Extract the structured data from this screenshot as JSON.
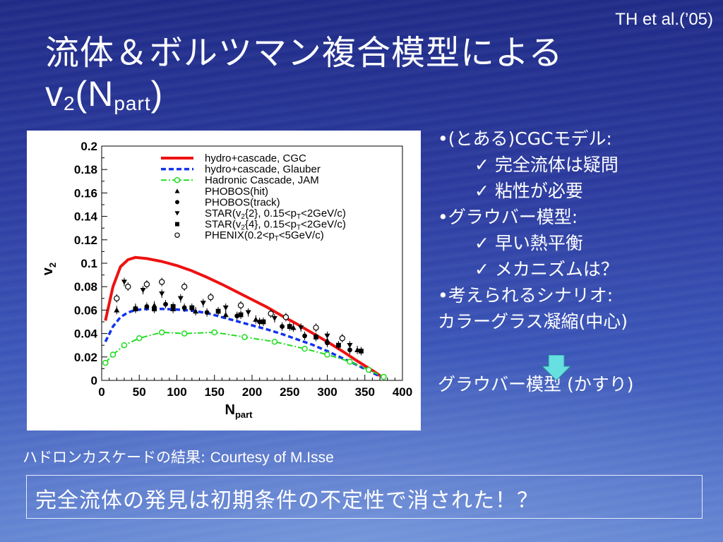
{
  "header": {
    "citation": "TH et al.(’05)",
    "title_line1": "流体＆ボルツマン複合模型による",
    "title_v": "v",
    "title_v_sub": "2",
    "title_open": "(N",
    "title_n_sub": "part",
    "title_close": ")"
  },
  "notes": {
    "items": [
      "•(とある)CGCモデル:",
      "✓ 完全流体は疑問",
      "✓ 粘性が必要",
      "•グラウバー模型:",
      "✓ 早い熱平衡",
      "✓ メカニズムは？",
      "•考えられるシナリオ:",
      "カラーグラス凝縮(中心)",
      "グラウバー模型 (かすり)"
    ]
  },
  "caption": {
    "jp": "ハドロンカスケードの結果: ",
    "en": "Courtesy of M.Isse"
  },
  "conclusion": "完全流体の発見は初期条件の不定性で消された！？",
  "colors": {
    "cgc": "#ee1111",
    "glauber": "#1133ee",
    "jam": "#22dd22",
    "arrow": "#66e0e0"
  },
  "chart_data": {
    "type": "line",
    "xlabel": "N",
    "xlabel_sub": "part",
    "ylabel": "v",
    "ylabel_sub": "2",
    "xlim": [
      0,
      400
    ],
    "ylim": [
      0,
      0.2
    ],
    "xticks": [
      0,
      50,
      100,
      150,
      200,
      250,
      300,
      350,
      400
    ],
    "yticks": [
      0,
      0.02,
      0.04,
      0.06,
      0.08,
      0.1,
      0.12,
      0.14,
      0.16,
      0.18,
      0.2
    ],
    "ytick_labels": [
      "0",
      "0.02",
      "0.04",
      "0.06",
      "0.08",
      "0.1",
      "0.12",
      "0.14",
      "0.16",
      "0.18",
      "0.2"
    ],
    "series": [
      {
        "name": "hydro+cascade, CGC",
        "style": "solid",
        "color": "#ee1111",
        "x": [
          5,
          15,
          25,
          35,
          45,
          60,
          80,
          100,
          120,
          140,
          160,
          180,
          200,
          220,
          240,
          260,
          280,
          300,
          320,
          340,
          360,
          375
        ],
        "y": [
          0.051,
          0.08,
          0.097,
          0.103,
          0.105,
          0.104,
          0.1015,
          0.098,
          0.0935,
          0.088,
          0.082,
          0.0755,
          0.069,
          0.0625,
          0.055,
          0.048,
          0.0405,
          0.033,
          0.025,
          0.0165,
          0.0085,
          0.002
        ]
      },
      {
        "name": "hydro+cascade, Glauber",
        "style": "dashed",
        "color": "#1133ee",
        "x": [
          5,
          15,
          25,
          35,
          45,
          60,
          80,
          100,
          120,
          140,
          160,
          180,
          200,
          220,
          240,
          260,
          280,
          300,
          320,
          340,
          360,
          375
        ],
        "y": [
          0.033,
          0.046,
          0.054,
          0.058,
          0.06,
          0.061,
          0.061,
          0.0605,
          0.0595,
          0.0575,
          0.054,
          0.0505,
          0.047,
          0.0435,
          0.0395,
          0.035,
          0.0305,
          0.025,
          0.019,
          0.013,
          0.0065,
          0.002
        ]
      },
      {
        "name": "Hadronic Cascade, JAM",
        "style": "dashdot-circle",
        "color": "#22dd22",
        "x": [
          5,
          15,
          30,
          50,
          80,
          110,
          150,
          190,
          230,
          270,
          300,
          330,
          355,
          375
        ],
        "y": [
          0.015,
          0.022,
          0.03,
          0.036,
          0.041,
          0.04,
          0.041,
          0.037,
          0.033,
          0.027,
          0.022,
          0.016,
          0.009,
          0.003
        ]
      },
      {
        "name": "PHOBOS(hit)",
        "marker": "triangle-up",
        "x": [
          20,
          45,
          70,
          95,
          125,
          165,
          205,
          255,
          300,
          340
        ],
        "y": [
          0.06,
          0.062,
          0.064,
          0.061,
          0.059,
          0.056,
          0.052,
          0.045,
          0.034,
          0.026
        ]
      },
      {
        "name": "PHOBOS(track)",
        "marker": "circle-filled",
        "x": [
          60,
          85,
          110,
          140,
          180,
          210,
          240,
          270,
          300,
          330
        ],
        "y": [
          0.063,
          0.065,
          0.062,
          0.058,
          0.055,
          0.05,
          0.046,
          0.038,
          0.032,
          0.026
        ]
      },
      {
        "name": "STAR(v2{2}, 0.15<pT<2GeV/c)",
        "marker": "triangle-down",
        "x": [
          30,
          55,
          80,
          105,
          135,
          165,
          195,
          230,
          265,
          300,
          330
        ],
        "y": [
          0.084,
          0.077,
          0.074,
          0.07,
          0.066,
          0.062,
          0.058,
          0.053,
          0.045,
          0.038,
          0.03
        ]
      },
      {
        "name": "STAR(v2{4}, 0.15<pT<2GeV/c)",
        "marker": "square",
        "x": [
          45,
          70,
          95,
          120,
          155,
          185,
          215,
          250,
          285,
          315,
          345
        ],
        "y": [
          0.061,
          0.061,
          0.063,
          0.062,
          0.059,
          0.056,
          0.05,
          0.046,
          0.037,
          0.03,
          0.025
        ]
      },
      {
        "name": "PHENIX(0.2<pT<5GeV/c)",
        "marker": "circle-open",
        "x": [
          20,
          35,
          60,
          80,
          110,
          145,
          185,
          225,
          245,
          285,
          320
        ],
        "y": [
          0.07,
          0.08,
          0.082,
          0.084,
          0.08,
          0.071,
          0.064,
          0.057,
          0.054,
          0.045,
          0.036
        ]
      }
    ],
    "legend": {
      "placement": "top-right",
      "entries": [
        {
          "label": "hydro+cascade, CGC"
        },
        {
          "label": "hydro+cascade, Glauber"
        },
        {
          "label": "Hadronic Cascade, JAM"
        },
        {
          "label": "PHOBOS(hit)"
        },
        {
          "label": "PHOBOS(track)"
        },
        {
          "label": "STAR(v",
          "sub": "2",
          "rest": "{2}, 0.15<p",
          "sub2": "T",
          "rest2": "<2GeV/c)"
        },
        {
          "label": "STAR(v",
          "sub": "2",
          "rest": "{4}, 0.15<p",
          "sub2": "T",
          "rest2": "<2GeV/c)"
        },
        {
          "label": "PHENIX(0.2<p",
          "sub": "T",
          "rest": "<5GeV/c)"
        }
      ]
    }
  }
}
